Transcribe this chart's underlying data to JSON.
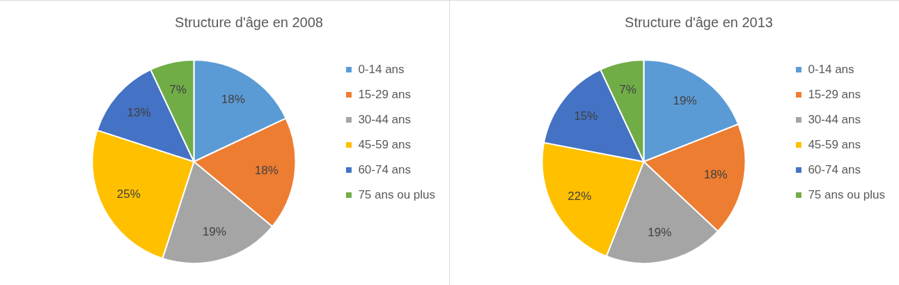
{
  "chart_data": [
    {
      "type": "pie",
      "title": "Structure d'âge en 2008",
      "categories": [
        "0-14 ans",
        "15-29 ans",
        "30-44 ans",
        "45-59 ans",
        "60-74 ans",
        "75 ans ou plus"
      ],
      "values": [
        18,
        18,
        19,
        25,
        13,
        7
      ],
      "value_labels": [
        "18%",
        "18%",
        "19%",
        "25%",
        "13%",
        "7%"
      ],
      "colors": [
        "#5b9bd5",
        "#ed7d31",
        "#a5a5a5",
        "#ffc000",
        "#4472c4",
        "#70ad47"
      ],
      "legend": "right"
    },
    {
      "type": "pie",
      "title": "Structure d'âge en 2013",
      "categories": [
        "0-14 ans",
        "15-29 ans",
        "30-44 ans",
        "45-59 ans",
        "60-74 ans",
        "75 ans ou plus"
      ],
      "values": [
        19,
        18,
        19,
        22,
        15,
        7
      ],
      "value_labels": [
        "19%",
        "18%",
        "19%",
        "22%",
        "15%",
        "7%"
      ],
      "colors": [
        "#5b9bd5",
        "#ed7d31",
        "#a5a5a5",
        "#ffc000",
        "#4472c4",
        "#70ad47"
      ],
      "legend": "right"
    }
  ]
}
